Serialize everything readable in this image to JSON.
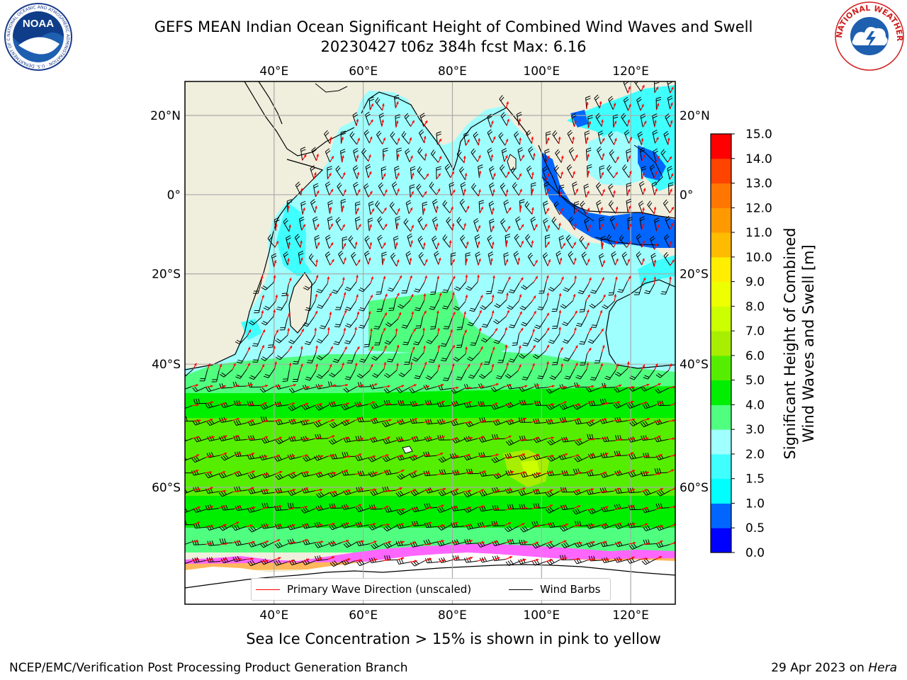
{
  "title": {
    "line1": "GEFS MEAN Indian Ocean Significant Height of Combined Wind Waves and Swell",
    "line2": "20230427 t06z 384h fcst   Max: 6.16"
  },
  "logos": {
    "left": {
      "name": "noaa-logo",
      "text": "NOAA"
    },
    "right": {
      "name": "nws-logo",
      "ring_text": "NATIONAL WEATHER SERVICE"
    }
  },
  "map": {
    "lon_ticks_top": [
      "40°E",
      "60°E",
      "80°E",
      "100°E",
      "120°E"
    ],
    "lon_ticks_bottom": [
      "40°E",
      "60°E",
      "80°E",
      "100°E",
      "120°E"
    ],
    "lat_ticks_left": [
      "20°N",
      "0°",
      "20°S",
      "40°S",
      "60°S"
    ],
    "lat_ticks_right": [
      "20°N",
      "0°",
      "20°S",
      "40°S",
      "60°S"
    ],
    "lon_values": [
      40,
      60,
      80,
      100,
      120
    ],
    "lat_values": [
      20,
      0,
      -20,
      -40,
      -60
    ],
    "extent": {
      "lon_min": 20,
      "lon_max": 130,
      "lat_min": -72,
      "lat_max": 28
    },
    "colors": {
      "land": "#f0eedc",
      "ice_white": "#ffffff",
      "arrow": "#ff0000",
      "barb": "#000000"
    }
  },
  "legend": {
    "primary_wave": "Primary Wave Direction (unscaled)",
    "wind_barbs": "Wind Barbs",
    "primary_color": "#ff0000",
    "barb_color": "#000000"
  },
  "colorbar": {
    "label_line1": "Significant Height of Combined",
    "label_line2": "Wind Waves and Swell [m]",
    "ticks": [
      "0.0",
      "0.5",
      "1.0",
      "1.5",
      "2.0",
      "3.0",
      "4.0",
      "5.0",
      "6.0",
      "7.0",
      "8.0",
      "9.0",
      "10.0",
      "11.0",
      "12.0",
      "13.0",
      "14.0",
      "15.0"
    ],
    "colors": [
      "#0000ff",
      "#0066ff",
      "#00ffff",
      "#40ffff",
      "#a0ffff",
      "#50ff80",
      "#00ee00",
      "#55ee00",
      "#a8ee00",
      "#ccff00",
      "#eeff00",
      "#ffee00",
      "#ffbb00",
      "#ff9900",
      "#ff7700",
      "#ff4400",
      "#ff0000"
    ]
  },
  "footer": {
    "ice_note": "Sea Ice Concentration > 15% is shown in pink to yellow",
    "credit": "NCEP/EMC/Verification Post Processing Product Generation Branch",
    "date": "29 Apr 2023 on",
    "machine": "Hera"
  }
}
